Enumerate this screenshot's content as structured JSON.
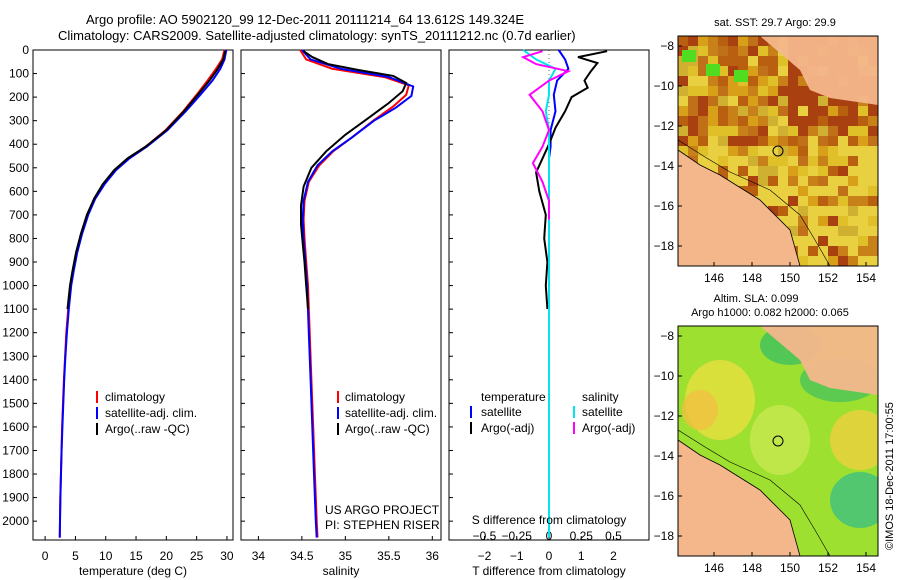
{
  "header": {
    "line1": "Argo profile: AO 5902120_99 12-Dec-2011 20111214_64 13.612S 149.324E",
    "line2": "Climatology: CARS2009. Satellite-adjusted climatology: synTS_20111212.nc (0.7d earlier)"
  },
  "colors": {
    "clim": "#ff0000",
    "sat": "#0000ff",
    "argo": "#000000",
    "sat_sal": "#00e5ee",
    "argo_sal": "#ff00ff"
  },
  "chart_data": [
    {
      "type": "line",
      "name": "temperature-profile",
      "xlabel": "temperature (deg C)",
      "xticks": [
        0,
        5,
        10,
        15,
        20,
        25,
        30
      ],
      "xlim": [
        -2,
        31
      ],
      "ylim": [
        2080,
        0
      ],
      "yticks": [
        0,
        100,
        200,
        300,
        400,
        500,
        600,
        700,
        800,
        900,
        1000,
        1100,
        1200,
        1300,
        1400,
        1500,
        1600,
        1700,
        1800,
        1900,
        2000
      ],
      "legend": [
        "climatology",
        "satellite-adj. clim.",
        "Argo(..raw -QC)"
      ],
      "series": [
        {
          "name": "climatology",
          "color": "#ff0000",
          "points": [
            [
              29.6,
              0
            ],
            [
              29.2,
              40
            ],
            [
              28.2,
              80
            ],
            [
              26.8,
              130
            ],
            [
              25.0,
              190
            ],
            [
              22.8,
              260
            ],
            [
              19.9,
              340
            ],
            [
              16.6,
              410
            ],
            [
              13.8,
              460
            ],
            [
              11.6,
              510
            ],
            [
              9.7,
              570
            ],
            [
              8.2,
              630
            ],
            [
              7.0,
              700
            ],
            [
              6.0,
              780
            ],
            [
              5.2,
              860
            ],
            [
              4.6,
              940
            ],
            [
              4.2,
              1000
            ],
            [
              3.8,
              1100
            ],
            [
              3.5,
              1200
            ],
            [
              3.3,
              1300
            ],
            [
              3.1,
              1400
            ],
            [
              2.95,
              1500
            ],
            [
              2.8,
              1600
            ],
            [
              2.7,
              1700
            ],
            [
              2.6,
              1800
            ],
            [
              2.5,
              1900
            ],
            [
              2.45,
              2000
            ],
            [
              2.4,
              2070
            ]
          ]
        },
        {
          "name": "satellite-adj. clim.",
          "color": "#0000ff",
          "points": [
            [
              29.9,
              0
            ],
            [
              29.6,
              40
            ],
            [
              28.9,
              80
            ],
            [
              27.6,
              130
            ],
            [
              25.6,
              190
            ],
            [
              23.2,
              260
            ],
            [
              20.2,
              340
            ],
            [
              16.8,
              410
            ],
            [
              13.9,
              460
            ],
            [
              11.7,
              510
            ],
            [
              9.8,
              570
            ],
            [
              8.3,
              630
            ],
            [
              7.1,
              700
            ],
            [
              6.1,
              780
            ],
            [
              5.3,
              860
            ],
            [
              4.7,
              940
            ],
            [
              4.3,
              1000
            ],
            [
              3.9,
              1100
            ],
            [
              3.6,
              1200
            ],
            [
              3.35,
              1300
            ],
            [
              3.15,
              1400
            ],
            [
              3.0,
              1500
            ],
            [
              2.85,
              1600
            ],
            [
              2.72,
              1700
            ],
            [
              2.62,
              1800
            ],
            [
              2.52,
              1900
            ],
            [
              2.46,
              2000
            ],
            [
              2.42,
              2070
            ]
          ]
        },
        {
          "name": "Argo(..raw -QC)",
          "color": "#000000",
          "points": [
            [
              29.7,
              5
            ],
            [
              29.4,
              40
            ],
            [
              28.5,
              80
            ],
            [
              27.1,
              130
            ],
            [
              25.2,
              190
            ],
            [
              22.9,
              260
            ],
            [
              20.0,
              340
            ],
            [
              16.6,
              410
            ],
            [
              13.6,
              460
            ],
            [
              11.4,
              510
            ],
            [
              9.5,
              570
            ],
            [
              8.1,
              630
            ],
            [
              6.9,
              700
            ],
            [
              5.9,
              780
            ],
            [
              5.1,
              860
            ],
            [
              4.5,
              940
            ],
            [
              4.1,
              1000
            ],
            [
              3.7,
              1100
            ]
          ]
        }
      ]
    },
    {
      "type": "line",
      "name": "salinity-profile",
      "xlabel": "salinity",
      "xticks": [
        34,
        34.5,
        35,
        35.5,
        36
      ],
      "xlim": [
        33.8,
        36.1
      ],
      "ylim": [
        2080,
        0
      ],
      "legend": [
        "climatology",
        "satellite-adj. clim.",
        "Argo(..raw -QC)"
      ],
      "annotations": [
        "US ARGO PROJECT",
        "PI: STEPHEN RISER"
      ],
      "series": [
        {
          "name": "climatology",
          "color": "#ff0000",
          "points": [
            [
              34.48,
              0
            ],
            [
              34.55,
              40
            ],
            [
              34.85,
              80
            ],
            [
              35.45,
              115
            ],
            [
              35.73,
              150
            ],
            [
              35.7,
              190
            ],
            [
              35.55,
              240
            ],
            [
              35.32,
              300
            ],
            [
              35.08,
              370
            ],
            [
              34.86,
              430
            ],
            [
              34.7,
              490
            ],
            [
              34.58,
              560
            ],
            [
              34.53,
              640
            ],
            [
              34.52,
              720
            ],
            [
              34.53,
              800
            ],
            [
              34.55,
              900
            ],
            [
              34.57,
              1000
            ],
            [
              34.59,
              1200
            ],
            [
              34.61,
              1400
            ],
            [
              34.63,
              1600
            ],
            [
              34.65,
              1800
            ],
            [
              34.67,
              2000
            ],
            [
              34.68,
              2070
            ]
          ]
        },
        {
          "name": "satellite-adj. clim.",
          "color": "#0000ff",
          "points": [
            [
              34.5,
              0
            ],
            [
              34.6,
              40
            ],
            [
              34.95,
              80
            ],
            [
              35.5,
              115
            ],
            [
              35.78,
              155
            ],
            [
              35.76,
              195
            ],
            [
              35.58,
              245
            ],
            [
              35.33,
              300
            ],
            [
              35.08,
              370
            ],
            [
              34.85,
              430
            ],
            [
              34.68,
              490
            ],
            [
              34.57,
              560
            ],
            [
              34.52,
              640
            ],
            [
              34.51,
              720
            ],
            [
              34.52,
              800
            ],
            [
              34.54,
              900
            ],
            [
              34.56,
              1000
            ],
            [
              34.58,
              1200
            ],
            [
              34.6,
              1400
            ],
            [
              34.62,
              1600
            ],
            [
              34.64,
              1800
            ],
            [
              34.66,
              2000
            ],
            [
              34.67,
              2070
            ]
          ]
        },
        {
          "name": "Argo(..raw -QC)",
          "color": "#000000",
          "points": [
            [
              34.52,
              5
            ],
            [
              34.62,
              30
            ],
            [
              34.8,
              60
            ],
            [
              35.15,
              85
            ],
            [
              35.55,
              110
            ],
            [
              35.7,
              140
            ],
            [
              35.66,
              175
            ],
            [
              35.5,
              225
            ],
            [
              35.26,
              290
            ],
            [
              35.0,
              360
            ],
            [
              34.78,
              430
            ],
            [
              34.61,
              500
            ],
            [
              34.52,
              580
            ],
            [
              34.49,
              660
            ],
            [
              34.49,
              740
            ],
            [
              34.51,
              820
            ],
            [
              34.53,
              900
            ],
            [
              34.55,
              1000
            ],
            [
              34.57,
              1100
            ]
          ]
        }
      ]
    },
    {
      "type": "line",
      "name": "difference-profile",
      "xlabel_bottom": "T difference from climatology",
      "xlabel_top": "S difference from climatology",
      "xticks_T": [
        -2,
        -1,
        0,
        1,
        2
      ],
      "xticks_S": [
        -0.5,
        -0.25,
        0,
        0.25,
        0.5
      ],
      "xlim_T": [
        -3.1,
        3.1
      ],
      "ylim": [
        2080,
        0
      ],
      "legend": {
        "temperature": {
          "heading": "temperature",
          "items": [
            "satellite",
            "Argo(-adj)"
          ]
        },
        "salinity": {
          "heading": "salinity",
          "items": [
            "satellite",
            "Argo(-adj)"
          ]
        }
      },
      "series": [
        {
          "name": "T satellite",
          "color": "#0000ff",
          "points": [
            [
              0.3,
              0
            ],
            [
              0.5,
              40
            ],
            [
              0.6,
              80
            ],
            [
              0.25,
              130
            ],
            [
              0.15,
              190
            ],
            [
              0.2,
              260
            ],
            [
              0.05,
              340
            ],
            [
              0.05,
              410
            ],
            [
              0.0,
              460
            ],
            [
              0.0,
              560
            ],
            [
              0.0,
              700
            ],
            [
              0.0,
              900
            ],
            [
              0.0,
              1200
            ],
            [
              0.0,
              1600
            ],
            [
              0.0,
              2000
            ],
            [
              0.0,
              2070
            ]
          ]
        },
        {
          "name": "T Argo(-adj)",
          "color": "#000000",
          "points": [
            [
              1.8,
              5
            ],
            [
              0.9,
              30
            ],
            [
              1.5,
              55
            ],
            [
              1.3,
              90
            ],
            [
              1.1,
              130
            ],
            [
              1.2,
              160
            ],
            [
              0.7,
              200
            ],
            [
              0.5,
              260
            ],
            [
              0.2,
              330
            ],
            [
              0.0,
              400
            ],
            [
              -0.2,
              460
            ],
            [
              -0.4,
              520
            ],
            [
              -0.3,
              600
            ],
            [
              -0.1,
              700
            ],
            [
              -0.15,
              800
            ],
            [
              -0.05,
              900
            ],
            [
              -0.1,
              1000
            ],
            [
              -0.05,
              1100
            ]
          ]
        },
        {
          "name": "S satellite",
          "color": "#00e5ee",
          "points": [
            [
              -0.4,
              0
            ],
            [
              -0.2,
              40
            ],
            [
              0.1,
              80
            ],
            [
              0.0,
              130
            ],
            [
              0.0,
              190
            ],
            [
              -0.05,
              260
            ],
            [
              0.0,
              340
            ],
            [
              0.0,
              410
            ],
            [
              0.0,
              460
            ],
            [
              0.0,
              560
            ],
            [
              0.0,
              700
            ],
            [
              0.0,
              900
            ],
            [
              0.0,
              1200
            ],
            [
              0.0,
              1600
            ],
            [
              0.0,
              2000
            ],
            [
              0.0,
              2070
            ]
          ]
        },
        {
          "name": "S Argo(-adj)",
          "color": "#ff00ff",
          "points": [
            [
              -0.1,
              5
            ],
            [
              -0.4,
              30
            ],
            [
              -0.2,
              60
            ],
            [
              0.3,
              90
            ],
            [
              0.0,
              130
            ],
            [
              -0.3,
              190
            ],
            [
              -0.1,
              260
            ],
            [
              0.0,
              340
            ],
            [
              -0.1,
              410
            ],
            [
              -0.25,
              480
            ],
            [
              -0.1,
              560
            ],
            [
              0.0,
              640
            ],
            [
              0.0,
              720
            ]
          ]
        }
      ]
    }
  ],
  "maps": {
    "sst": {
      "title": "sat. SST: 29.7  Argo: 29.9",
      "yticks": [
        "-8",
        "-10",
        "-12",
        "-14",
        "-16",
        "-18"
      ],
      "xticks": [
        "146",
        "148",
        "150",
        "152",
        "154"
      ]
    },
    "sla": {
      "title1": "Altim. SLA: 0.099",
      "title2": "Argo h1000: 0.082  h2000: 0.065",
      "yticks": [
        "-8",
        "-10",
        "-12",
        "-14",
        "-16",
        "-18"
      ],
      "xticks": [
        "146",
        "148",
        "150",
        "152",
        "154"
      ]
    }
  },
  "stamp": "©IMOS 18-Dec-2011 17:00:55"
}
